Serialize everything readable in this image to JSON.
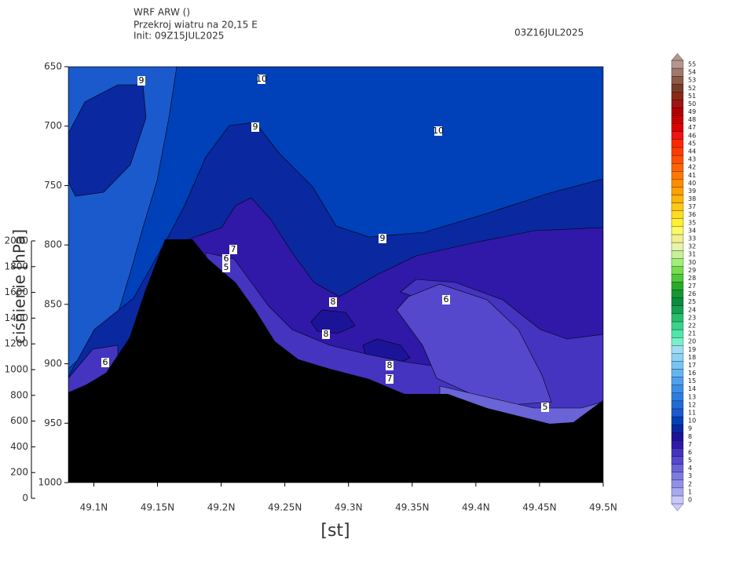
{
  "chart_data": {
    "type": "contour",
    "title": "WRF ARW ()",
    "subtitle": "Przekroj wiatru na 20,15 E",
    "init": "Init: 09Z15JUL2025",
    "valid_time": "03Z16JUL2025",
    "xlabel": "[st]",
    "ylabel": "ciśnienie [hPa]",
    "xlim": [
      49.08,
      49.5
    ],
    "xticks": [
      {
        "value": 49.1,
        "label": "49.1N"
      },
      {
        "value": 49.15,
        "label": "49.15N"
      },
      {
        "value": 49.2,
        "label": "49.2N"
      },
      {
        "value": 49.25,
        "label": "49.25N"
      },
      {
        "value": 49.3,
        "label": "49.3N"
      },
      {
        "value": 49.35,
        "label": "49.35N"
      },
      {
        "value": 49.4,
        "label": "49.4N"
      },
      {
        "value": 49.45,
        "label": "49.45N"
      },
      {
        "value": 49.5,
        "label": "49.5N"
      }
    ],
    "ylim": [
      650,
      1000
    ],
    "y_inverted": true,
    "yticks": [
      650,
      700,
      750,
      800,
      850,
      900,
      950,
      1000
    ],
    "y2lim": [
      0,
      2000
    ],
    "y2ticks": [
      0,
      200,
      400,
      600,
      800,
      1000,
      1200,
      1400,
      1600,
      1800,
      2000
    ],
    "contour_labels": [
      9,
      10,
      9,
      10,
      7,
      6,
      5,
      9,
      8,
      6,
      8,
      8,
      7,
      6,
      5
    ],
    "colorbar": {
      "levels": [
        0,
        1,
        2,
        3,
        4,
        5,
        6,
        7,
        8,
        9,
        10,
        11,
        12,
        13,
        14,
        15,
        16,
        17,
        18,
        19,
        20,
        21,
        22,
        23,
        24,
        25,
        26,
        27,
        28,
        29,
        30,
        31,
        32,
        33,
        34,
        35,
        36,
        37,
        38,
        39,
        40,
        41,
        42,
        43,
        44,
        45,
        46,
        47,
        48,
        49,
        50,
        51,
        52,
        53,
        54,
        55
      ],
      "colors": [
        "#c8c8fa",
        "#a8a8f0",
        "#9090e8",
        "#7c7ce0",
        "#6a64d8",
        "#5548cc",
        "#4434c0",
        "#3018a8",
        "#1c1498",
        "#0a28a0",
        "#0040b8",
        "#1a5acd",
        "#1e6ad6",
        "#2c7ede",
        "#3c8ee6",
        "#50a0ee",
        "#64b4f2",
        "#78c4f4",
        "#8cd2f4",
        "#a0dcf4",
        "#78f0c8",
        "#50e6aa",
        "#3cd28c",
        "#28be6e",
        "#14a050",
        "#0a8c3c",
        "#149632",
        "#28aa28",
        "#50c83c",
        "#78dc50",
        "#a0f078",
        "#c8f096",
        "#e6f4aa",
        "#f0f08c",
        "#fafa64",
        "#fff032",
        "#ffdc1e",
        "#ffc814",
        "#ffb40a",
        "#ffa000",
        "#ff8c00",
        "#ff7800",
        "#ff6400",
        "#ff5000",
        "#ff3c00",
        "#ff2800",
        "#f01414",
        "#dc0000",
        "#c80000",
        "#b40000",
        "#a01414",
        "#8c2814",
        "#783c28",
        "#8c5a46",
        "#a0786e",
        "#b4968c"
      ]
    }
  }
}
